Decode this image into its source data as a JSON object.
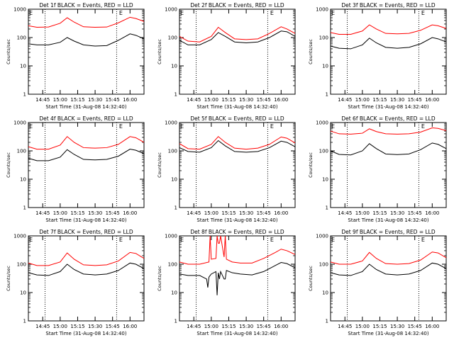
{
  "chart_data": [
    {
      "type": "line",
      "title": "Det 1f BLACK = Events, RED = LLD",
      "xlabel": "Start Time (31-Aug-08 14:32:40)",
      "ylabel": "Counts/sec",
      "yscale": "log",
      "ylim": [
        1,
        1000
      ],
      "xlim": [
        "14:32:40",
        "16:12:00"
      ],
      "y_ticks": [
        "1",
        "10",
        "100",
        "1000"
      ],
      "x_ticks": [
        "14:45",
        "15:00",
        "15:15",
        "15:30",
        "15:45",
        "16:00"
      ],
      "markers": [
        {
          "label": "E",
          "time": "14:32:40"
        },
        {
          "label": "E",
          "time": "15:50:00"
        }
      ],
      "vlines": [
        "14:47:00",
        "15:48:30"
      ],
      "series": [
        {
          "name": "Events",
          "color": "#000000",
          "x": [
            "14:32:40",
            "14:40",
            "14:50",
            "15:00",
            "15:06",
            "15:12",
            "15:20",
            "15:30",
            "15:40",
            "15:50",
            "16:00",
            "16:05",
            "16:12"
          ],
          "y": [
            60,
            55,
            55,
            68,
            100,
            75,
            55,
            50,
            52,
            80,
            135,
            120,
            90
          ]
        },
        {
          "name": "LLD",
          "color": "#ff0000",
          "x": [
            "14:32:40",
            "14:40",
            "14:50",
            "15:00",
            "15:06",
            "15:12",
            "15:20",
            "15:30",
            "15:40",
            "15:50",
            "16:00",
            "16:05",
            "16:12"
          ],
          "y": [
            260,
            230,
            235,
            320,
            500,
            350,
            240,
            230,
            235,
            330,
            520,
            470,
            370
          ]
        }
      ]
    },
    {
      "type": "line",
      "title": "Det 2f BLACK = Events, RED = LLD",
      "xlabel": "Start Time (31-Aug-08 14:32:40)",
      "ylabel": "Counts/sec",
      "yscale": "log",
      "ylim": [
        1,
        1000
      ],
      "xlim": [
        "14:32:40",
        "16:12:00"
      ],
      "y_ticks": [
        "1",
        "10",
        "100",
        "1000"
      ],
      "x_ticks": [
        "14:45",
        "15:00",
        "15:15",
        "15:30",
        "15:45",
        "16:00"
      ],
      "markers": [
        {
          "label": "E",
          "time": "14:32:40"
        },
        {
          "label": "E",
          "time": "15:50:00"
        }
      ],
      "vlines": [
        "14:47:00",
        "15:48:30"
      ],
      "series": [
        {
          "name": "Events",
          "color": "#000000",
          "x": [
            "14:32:40",
            "14:40",
            "14:50",
            "15:00",
            "15:06",
            "15:12",
            "15:20",
            "15:30",
            "15:40",
            "15:50",
            "16:00",
            "16:05",
            "16:12"
          ],
          "y": [
            80,
            55,
            55,
            85,
            150,
            110,
            70,
            65,
            70,
            100,
            170,
            160,
            110
          ]
        },
        {
          "name": "LLD",
          "color": "#ff0000",
          "x": [
            "14:32:40",
            "14:40",
            "14:50",
            "15:00",
            "15:06",
            "15:12",
            "15:20",
            "15:30",
            "15:40",
            "15:50",
            "16:00",
            "16:05",
            "16:12"
          ],
          "y": [
            110,
            75,
            70,
            110,
            230,
            150,
            90,
            85,
            90,
            140,
            240,
            200,
            140
          ]
        }
      ]
    },
    {
      "type": "line",
      "title": "Det 3f BLACK = Events, RED = LLD",
      "xlabel": "Start Time (31-Aug-08 14:32:40)",
      "ylabel": "Counts/sec",
      "yscale": "log",
      "ylim": [
        1,
        1000
      ],
      "xlim": [
        "14:32:40",
        "16:12:00"
      ],
      "y_ticks": [
        "1",
        "10",
        "100",
        "1000"
      ],
      "x_ticks": [
        "14:45",
        "15:00",
        "15:15",
        "15:30",
        "15:45",
        "16:00"
      ],
      "markers": [
        {
          "label": "E",
          "time": "14:32:40"
        },
        {
          "label": "E",
          "time": "15:50:00"
        }
      ],
      "vlines": [
        "14:47:00",
        "15:48:30"
      ],
      "series": [
        {
          "name": "Events",
          "color": "#000000",
          "x": [
            "14:32:40",
            "14:40",
            "14:50",
            "15:00",
            "15:06",
            "15:12",
            "15:20",
            "15:30",
            "15:40",
            "15:50",
            "16:00",
            "16:05",
            "16:12"
          ],
          "y": [
            50,
            42,
            40,
            55,
            95,
            65,
            45,
            42,
            45,
            60,
            100,
            90,
            70
          ]
        },
        {
          "name": "LLD",
          "color": "#ff0000",
          "x": [
            "14:32:40",
            "14:40",
            "14:50",
            "15:00",
            "15:06",
            "15:12",
            "15:20",
            "15:30",
            "15:40",
            "15:50",
            "16:00",
            "16:05",
            "16:12"
          ],
          "y": [
            150,
            130,
            130,
            170,
            280,
            200,
            140,
            135,
            140,
            180,
            280,
            260,
            210
          ]
        }
      ]
    },
    {
      "type": "line",
      "title": "Det 4f BLACK = Events, RED = LLD",
      "xlabel": "Start Time (31-Aug-08 14:32:40)",
      "ylabel": "Counts/sec",
      "yscale": "log",
      "ylim": [
        1,
        1000
      ],
      "xlim": [
        "14:32:40",
        "16:12:00"
      ],
      "y_ticks": [
        "1",
        "10",
        "100",
        "1000"
      ],
      "x_ticks": [
        "14:45",
        "15:00",
        "15:15",
        "15:30",
        "15:45",
        "16:00"
      ],
      "markers": [
        {
          "label": "E",
          "time": "14:32:40"
        },
        {
          "label": "E",
          "time": "15:50:00"
        }
      ],
      "vlines": [
        "14:47:00",
        "15:48:30"
      ],
      "series": [
        {
          "name": "Events",
          "color": "#000000",
          "x": [
            "14:32:40",
            "14:40",
            "14:50",
            "15:00",
            "15:06",
            "15:12",
            "15:20",
            "15:30",
            "15:40",
            "15:50",
            "16:00",
            "16:05",
            "16:12"
          ],
          "y": [
            55,
            45,
            45,
            60,
            110,
            75,
            50,
            48,
            50,
            65,
            115,
            105,
            80
          ]
        },
        {
          "name": "LLD",
          "color": "#ff0000",
          "x": [
            "14:32:40",
            "14:40",
            "14:50",
            "15:00",
            "15:06",
            "15:12",
            "15:20",
            "15:30",
            "15:40",
            "15:50",
            "16:00",
            "16:05",
            "16:12"
          ],
          "y": [
            140,
            115,
            115,
            160,
            320,
            200,
            130,
            125,
            130,
            170,
            320,
            290,
            200
          ]
        }
      ]
    },
    {
      "type": "line",
      "title": "Det 5f BLACK = Events, RED = LLD",
      "xlabel": "Start Time (31-Aug-08 14:32:40)",
      "ylabel": "Counts/sec",
      "yscale": "log",
      "ylim": [
        1,
        1000
      ],
      "xlim": [
        "14:32:40",
        "16:12:00"
      ],
      "y_ticks": [
        "1",
        "10",
        "100",
        "1000"
      ],
      "x_ticks": [
        "14:45",
        "15:00",
        "15:15",
        "15:30",
        "15:45",
        "16:00"
      ],
      "markers": [
        {
          "label": "E",
          "time": "14:32:40"
        },
        {
          "label": "E",
          "time": "15:50:00"
        }
      ],
      "vlines": [
        "14:47:00",
        "15:48:30"
      ],
      "series": [
        {
          "name": "Events",
          "color": "#000000",
          "x": [
            "14:32:40",
            "14:40",
            "14:50",
            "15:00",
            "15:06",
            "15:12",
            "15:20",
            "15:30",
            "15:40",
            "15:50",
            "16:00",
            "16:05",
            "16:12"
          ],
          "y": [
            130,
            95,
            90,
            130,
            230,
            150,
            95,
            90,
            95,
            130,
            220,
            200,
            140
          ]
        },
        {
          "name": "LLD",
          "color": "#ff0000",
          "x": [
            "14:32:40",
            "14:40",
            "14:50",
            "15:00",
            "15:06",
            "15:12",
            "15:20",
            "15:30",
            "15:40",
            "15:50",
            "16:00",
            "16:05",
            "16:12"
          ],
          "y": [
            180,
            120,
            115,
            170,
            320,
            200,
            125,
            115,
            125,
            170,
            310,
            280,
            190
          ]
        }
      ]
    },
    {
      "type": "line",
      "title": "Det 6f BLACK = Events, RED = LLD",
      "xlabel": "Start Time (31-Aug-08 14:32:40)",
      "ylabel": "Counts/sec",
      "yscale": "log",
      "ylim": [
        1,
        1000
      ],
      "xlim": [
        "14:32:40",
        "16:12:00"
      ],
      "y_ticks": [
        "1",
        "10",
        "100",
        "1000"
      ],
      "x_ticks": [
        "14:45",
        "15:00",
        "15:15",
        "15:30",
        "15:45",
        "16:00"
      ],
      "markers": [
        {
          "label": "E",
          "time": "14:32:40"
        },
        {
          "label": "E",
          "time": "15:50:00"
        }
      ],
      "vlines": [
        "14:47:00",
        "15:48:30"
      ],
      "series": [
        {
          "name": "Events",
          "color": "#000000",
          "x": [
            "14:32:40",
            "14:40",
            "14:50",
            "15:00",
            "15:06",
            "15:12",
            "15:20",
            "15:30",
            "15:40",
            "15:50",
            "16:00",
            "16:05",
            "16:12"
          ],
          "y": [
            100,
            75,
            72,
            100,
            180,
            120,
            78,
            74,
            78,
            110,
            190,
            170,
            120
          ]
        },
        {
          "name": "LLD",
          "color": "#ff0000",
          "x": [
            "14:32:40",
            "14:40",
            "14:50",
            "15:00",
            "15:06",
            "15:12",
            "15:20",
            "15:30",
            "15:40",
            "15:50",
            "16:00",
            "16:05",
            "16:12"
          ],
          "y": [
            500,
            400,
            390,
            420,
            600,
            480,
            400,
            390,
            400,
            460,
            650,
            620,
            520
          ]
        }
      ]
    },
    {
      "type": "line",
      "title": "Det 7f BLACK = Events, RED = LLD",
      "xlabel": "Start Time (31-Aug-08 14:32:40)",
      "ylabel": "Counts/sec",
      "yscale": "log",
      "ylim": [
        1,
        1000
      ],
      "xlim": [
        "14:32:40",
        "16:12:00"
      ],
      "y_ticks": [
        "1",
        "10",
        "100",
        "1000"
      ],
      "x_ticks": [
        "14:45",
        "15:00",
        "15:15",
        "15:30",
        "15:45",
        "16:00"
      ],
      "markers": [
        {
          "label": "E",
          "time": "14:32:40"
        },
        {
          "label": "E",
          "time": "15:50:00"
        }
      ],
      "vlines": [
        "14:47:00",
        "15:48:30"
      ],
      "series": [
        {
          "name": "Events",
          "color": "#000000",
          "x": [
            "14:32:40",
            "14:40",
            "14:50",
            "15:00",
            "15:06",
            "15:12",
            "15:20",
            "15:30",
            "15:40",
            "15:50",
            "16:00",
            "16:05",
            "16:12"
          ],
          "y": [
            50,
            42,
            40,
            55,
            100,
            65,
            45,
            42,
            45,
            60,
            110,
            100,
            70
          ]
        },
        {
          "name": "LLD",
          "color": "#ff0000",
          "x": [
            "14:32:40",
            "14:40",
            "14:50",
            "15:00",
            "15:06",
            "15:12",
            "15:20",
            "15:30",
            "15:40",
            "15:50",
            "16:00",
            "16:05",
            "16:12"
          ],
          "y": [
            110,
            90,
            90,
            120,
            250,
            150,
            95,
            90,
            95,
            130,
            260,
            240,
            160
          ]
        }
      ]
    },
    {
      "type": "line",
      "title": "Det 8f BLACK = Events, RED = LLD",
      "xlabel": "Start Time (31-Aug-08 14:32:40)",
      "ylabel": "Counts/sec",
      "yscale": "log",
      "ylim": [
        1,
        1000
      ],
      "xlim": [
        "14:32:40",
        "16:12:00"
      ],
      "y_ticks": [
        "1",
        "10",
        "100",
        "1000"
      ],
      "x_ticks": [
        "14:45",
        "15:00",
        "15:15",
        "15:30",
        "15:45",
        "16:00"
      ],
      "markers": [
        {
          "label": "E",
          "time": "14:32:40"
        },
        {
          "label": "E",
          "time": "15:50:00"
        }
      ],
      "vlines": [
        "14:47:00",
        "15:48:30"
      ],
      "series": [
        {
          "name": "Events",
          "color": "#000000",
          "x": [
            "14:32:40",
            "14:40",
            "14:50",
            "14:56",
            "14:57",
            "14:58",
            "14:59",
            "15:00",
            "15:04",
            "15:05",
            "15:06",
            "15:07",
            "15:08",
            "15:11",
            "15:12",
            "15:13",
            "15:18",
            "15:25",
            "15:35",
            "15:45",
            "15:55",
            "16:00",
            "16:05",
            "16:12"
          ],
          "y": [
            45,
            40,
            40,
            30,
            15,
            35,
            40,
            45,
            55,
            8,
            50,
            30,
            55,
            30,
            30,
            60,
            50,
            45,
            42,
            55,
            90,
            115,
            105,
            75
          ]
        },
        {
          "name": "LLD",
          "color": "#ff0000",
          "x": [
            "14:32:40",
            "14:40",
            "14:50",
            "14:58",
            "14:59",
            "15:00",
            "15:04",
            "15:05",
            "15:06",
            "15:07",
            "15:08",
            "15:11",
            "15:12",
            "15:13",
            "15:18",
            "15:25",
            "15:35",
            "15:45",
            "15:55",
            "16:00",
            "16:05",
            "16:12"
          ],
          "y": [
            120,
            100,
            100,
            120,
            1000,
            150,
            160,
            1000,
            550,
            550,
            1000,
            180,
            1000,
            150,
            120,
            110,
            110,
            160,
            260,
            340,
            300,
            220
          ]
        }
      ]
    },
    {
      "type": "line",
      "title": "Det 9f BLACK = Events, RED = LLD",
      "xlabel": "Start Time (31-Aug-08 14:32:40)",
      "ylabel": "Counts/sec",
      "yscale": "log",
      "ylim": [
        1,
        1000
      ],
      "xlim": [
        "14:32:40",
        "16:12:00"
      ],
      "y_ticks": [
        "1",
        "10",
        "100",
        "1000"
      ],
      "x_ticks": [
        "14:45",
        "15:00",
        "15:15",
        "15:30",
        "15:45",
        "16:00"
      ],
      "markers": [
        {
          "label": "E",
          "time": "14:32:40"
        },
        {
          "label": "E",
          "time": "15:50:00"
        }
      ],
      "vlines": [
        "14:47:00",
        "15:48:30"
      ],
      "series": [
        {
          "name": "Events",
          "color": "#000000",
          "x": [
            "14:32:40",
            "14:40",
            "14:50",
            "15:00",
            "15:06",
            "15:12",
            "15:20",
            "15:30",
            "15:40",
            "15:50",
            "16:00",
            "16:05",
            "16:12"
          ],
          "y": [
            50,
            42,
            40,
            55,
            100,
            65,
            45,
            42,
            45,
            60,
            110,
            100,
            70
          ]
        },
        {
          "name": "LLD",
          "color": "#ff0000",
          "x": [
            "14:32:40",
            "14:40",
            "14:50",
            "15:00",
            "15:06",
            "15:12",
            "15:20",
            "15:30",
            "15:40",
            "15:50",
            "16:00",
            "16:05",
            "16:12"
          ],
          "y": [
            120,
            100,
            100,
            130,
            260,
            160,
            105,
            100,
            105,
            140,
            270,
            250,
            170
          ]
        }
      ]
    }
  ]
}
